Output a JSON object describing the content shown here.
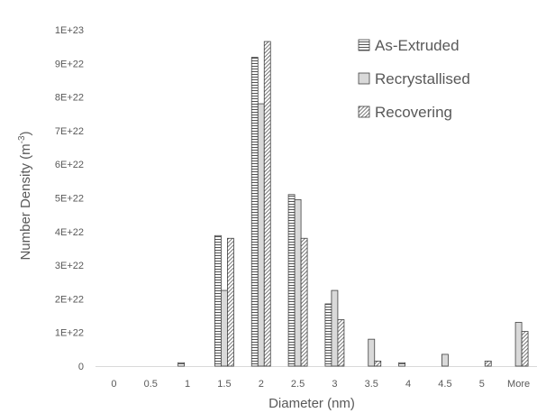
{
  "chart_data": {
    "type": "bar",
    "title": "",
    "xlabel": "Diameter (nm)",
    "ylabel_main": "Number Density (m",
    "ylabel_sup": "-3",
    "ylabel_close": ")",
    "categories": [
      "0",
      "0.5",
      "1",
      "1.5",
      "2",
      "2.5",
      "3",
      "3.5",
      "4",
      "4.5",
      "5",
      "More"
    ],
    "yticks": [
      "0",
      "1E+22",
      "2E+22",
      "3E+22",
      "4E+22",
      "5E+22",
      "6E+22",
      "7E+22",
      "8E+22",
      "9E+22",
      "1E+23"
    ],
    "ylim": [
      0,
      1e+23
    ],
    "grid": false,
    "legend_position": "top-right",
    "series": [
      {
        "name": "As-Extruded",
        "pattern": "horizontal-stripes",
        "values": [
          0,
          0,
          1e+21,
          3.88e+22,
          9.18e+22,
          5.1e+22,
          1.85e+22,
          0,
          1e+21,
          0,
          0,
          0
        ]
      },
      {
        "name": "Recrystallised",
        "pattern": "light-gray-fill",
        "values": [
          0,
          0,
          0,
          2.25e+22,
          7.8e+22,
          4.95e+22,
          2.25e+22,
          8e+21,
          0,
          3.5e+21,
          0,
          1.3e+22
        ]
      },
      {
        "name": "Recovering",
        "pattern": "diagonal-hatch",
        "values": [
          0,
          0,
          0,
          3.8e+22,
          9.65e+22,
          3.8e+22,
          1.38e+22,
          1.5e+21,
          0,
          0,
          1.5e+21,
          1.03e+22
        ]
      }
    ],
    "colors": {
      "axis": "#d9d9d9",
      "text": "#595959",
      "bar_outline": "#404040",
      "gray_fill": "#d9d9d9"
    }
  }
}
